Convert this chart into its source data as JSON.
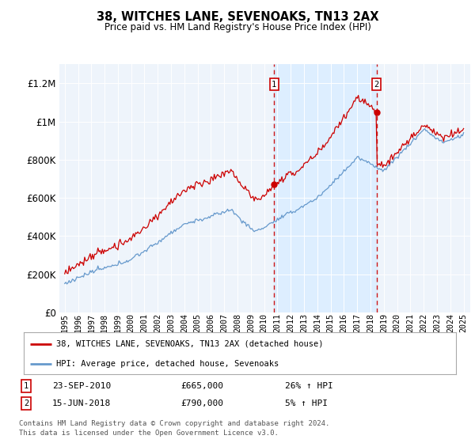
{
  "title": "38, WITCHES LANE, SEVENOAKS, TN13 2AX",
  "subtitle": "Price paid vs. HM Land Registry's House Price Index (HPI)",
  "ylim": [
    0,
    1300000
  ],
  "yticks": [
    0,
    200000,
    400000,
    600000,
    800000,
    1000000,
    1200000
  ],
  "ytick_labels": [
    "£0",
    "£200K",
    "£400K",
    "£600K",
    "£800K",
    "£1M",
    "£1.2M"
  ],
  "sale1_year": 2010.75,
  "sale1_price": 665000,
  "sale1_label": "1",
  "sale1_date": "23-SEP-2010",
  "sale1_pct": "26% ↑ HPI",
  "sale2_year": 2018.45,
  "sale2_price": 790000,
  "sale2_label": "2",
  "sale2_date": "15-JUN-2018",
  "sale2_pct": "5% ↑ HPI",
  "red_color": "#cc0000",
  "blue_color": "#6699cc",
  "shade_color": "#ddeeff",
  "bg_color": "#eef4fb",
  "legend_label_red": "38, WITCHES LANE, SEVENOAKS, TN13 2AX (detached house)",
  "legend_label_blue": "HPI: Average price, detached house, Sevenoaks",
  "footer1": "Contains HM Land Registry data © Crown copyright and database right 2024.",
  "footer2": "This data is licensed under the Open Government Licence v3.0."
}
